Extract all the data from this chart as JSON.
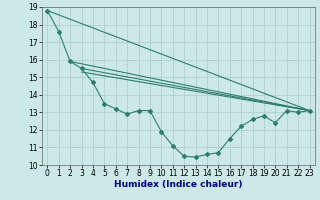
{
  "xlabel": "Humidex (Indice chaleur)",
  "xlim": [
    -0.5,
    23.5
  ],
  "ylim": [
    10,
    19
  ],
  "xticks": [
    0,
    1,
    2,
    3,
    4,
    5,
    6,
    7,
    8,
    9,
    10,
    11,
    12,
    13,
    14,
    15,
    16,
    17,
    18,
    19,
    20,
    21,
    22,
    23
  ],
  "yticks": [
    10,
    11,
    12,
    13,
    14,
    15,
    16,
    17,
    18,
    19
  ],
  "bg_color": "#cce8e8",
  "grid_color": "#aacccc",
  "line_color": "#2e7d6e",
  "line1_x": [
    0,
    1,
    2,
    3,
    4,
    5,
    6,
    7,
    8,
    9,
    10,
    11,
    12,
    13,
    14,
    15,
    16,
    17,
    18,
    19,
    20,
    21,
    22,
    23
  ],
  "line1_y": [
    18.8,
    17.6,
    15.9,
    15.5,
    14.7,
    13.5,
    13.2,
    12.9,
    13.1,
    13.1,
    11.9,
    11.1,
    10.5,
    10.45,
    10.6,
    10.7,
    11.5,
    12.2,
    12.6,
    12.8,
    12.4,
    13.1,
    13.0,
    13.1
  ],
  "line2_x": [
    0,
    23
  ],
  "line2_y": [
    18.8,
    13.1
  ],
  "line3_x": [
    2,
    23
  ],
  "line3_y": [
    15.9,
    13.1
  ],
  "line4_x": [
    3,
    23
  ],
  "line4_y": [
    15.5,
    13.1
  ],
  "line5_x": [
    3,
    23
  ],
  "line5_y": [
    15.3,
    13.1
  ],
  "xlabel_color": "#000080",
  "xlabel_fontsize": 6.5,
  "tick_fontsize": 5.5
}
